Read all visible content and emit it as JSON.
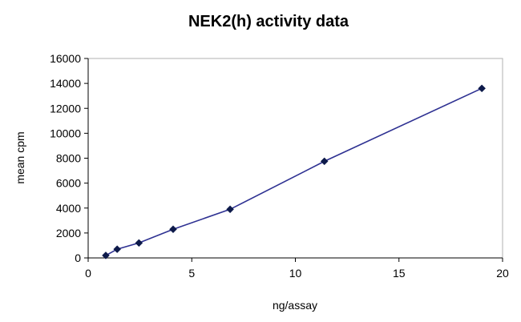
{
  "chart_data": {
    "type": "line",
    "title": "NEK2(h) activity data",
    "xlabel": "ng/assay",
    "ylabel": "mean cpm",
    "xlim": [
      0,
      20
    ],
    "ylim": [
      0,
      16000
    ],
    "x_ticks": [
      0,
      5,
      10,
      15,
      20
    ],
    "y_ticks": [
      0,
      2000,
      4000,
      6000,
      8000,
      10000,
      12000,
      14000,
      16000
    ],
    "grid": false,
    "legend": "none",
    "series": [
      {
        "color": "#2e3192",
        "marker": "diamond",
        "marker_color": "#0d1a4a",
        "x": [
          0.85,
          1.4,
          2.45,
          4.1,
          6.85,
          11.4,
          19.0
        ],
        "y": [
          200,
          700,
          1200,
          2300,
          3900,
          7750,
          13600
        ]
      }
    ]
  }
}
